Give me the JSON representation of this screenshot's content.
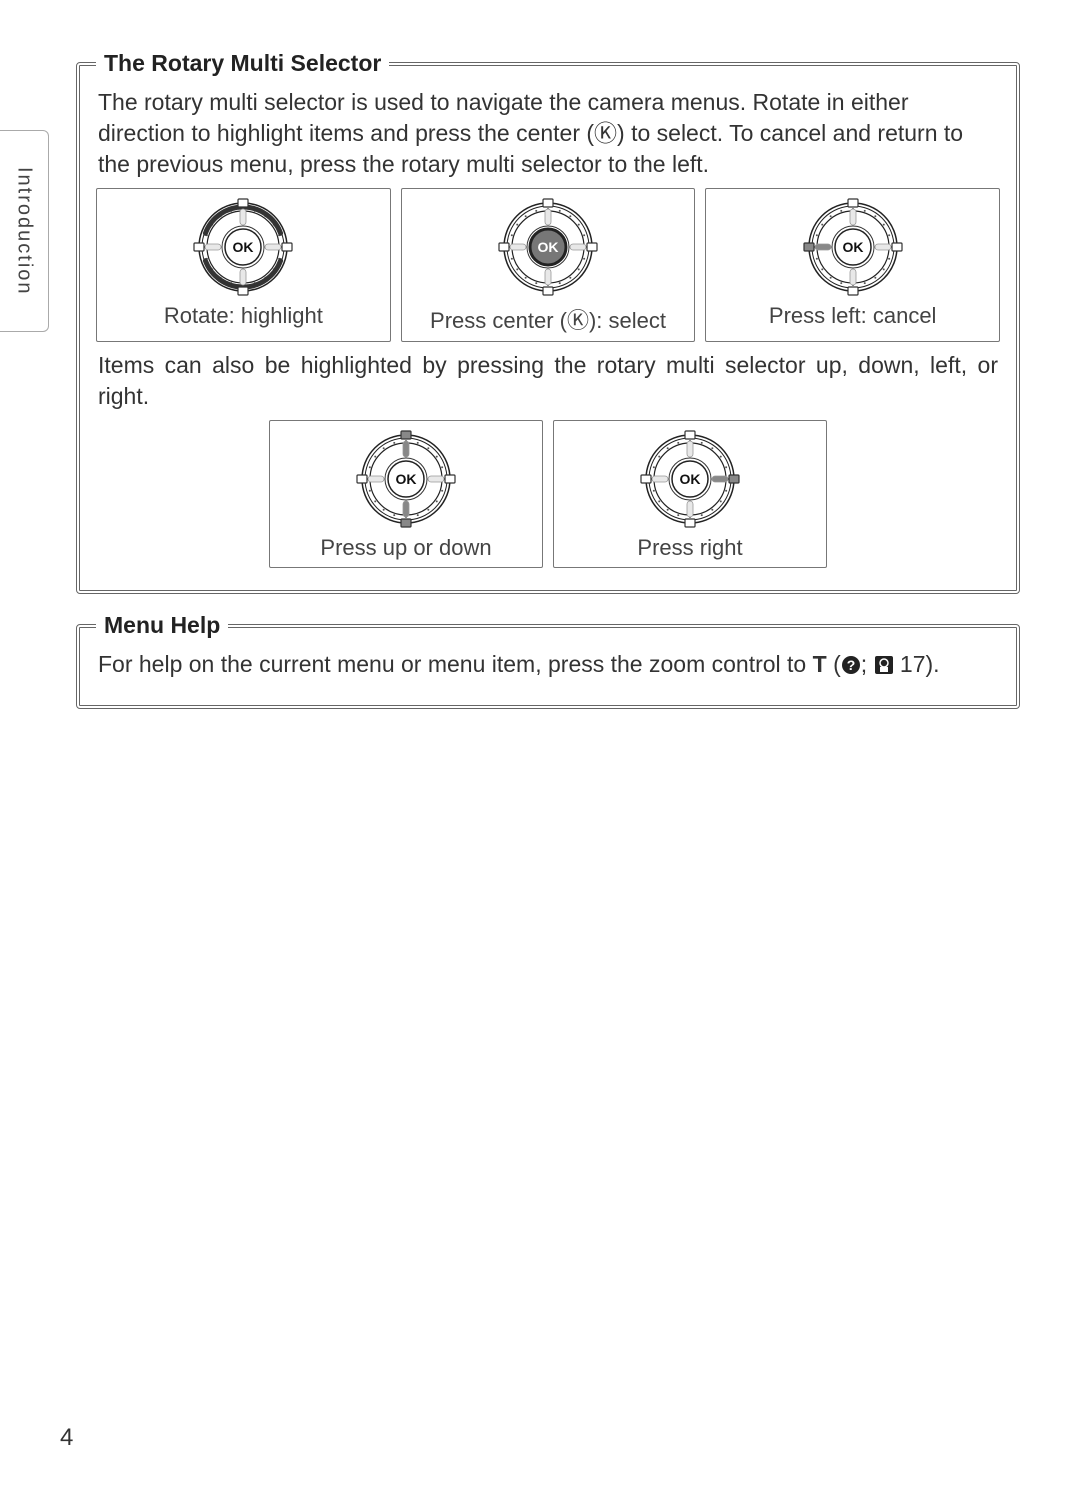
{
  "page": {
    "number": "4",
    "side_tab": "Introduction"
  },
  "colors": {
    "text": "#333333",
    "border": "#666666",
    "dial_outline": "#222222",
    "dial_fill": "#ffffff",
    "tick": "#555555",
    "highlight": "#888888",
    "ok_text": "#111111"
  },
  "selector": {
    "title": "The Rotary Multi Selector",
    "intro": "The rotary multi selector is used to navigate the camera menus.  Rotate in either direction to highlight items and press the center (Ⓚ) to select.  To cancel and return to the previous menu, press the rotary multi selector to the left.",
    "row1": [
      {
        "caption": "Rotate: highlight",
        "variant": "rotate"
      },
      {
        "caption": "Press center (Ⓚ): select",
        "variant": "center"
      },
      {
        "caption": "Press left: cancel",
        "variant": "left"
      }
    ],
    "mid_text": "Items can also be highlighted by pressing the rotary multi selector up, down, left, or right.",
    "row2": [
      {
        "caption": "Press up or down",
        "variant": "updown"
      },
      {
        "caption": "Press right",
        "variant": "right"
      }
    ],
    "ok_label": "OK"
  },
  "menu_help": {
    "title": "Menu Help",
    "text_pre": "For help on the current menu or menu item, press the zoom control to ",
    "t_label": "T",
    "text_mid": " (",
    "page_ref": " 17).",
    "help_glyph": "?",
    "book_glyph": "☰"
  },
  "dial": {
    "size": 100,
    "r_outer": 44,
    "r_ring": 36,
    "r_ok": 18,
    "tick_count": 20
  }
}
